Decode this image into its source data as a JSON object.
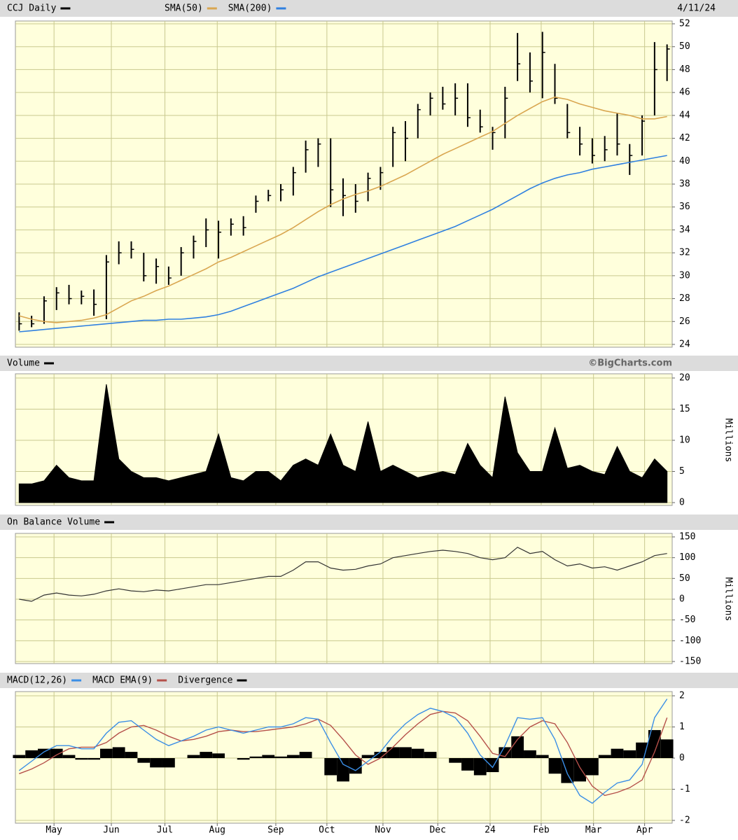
{
  "chart_data": [
    {
      "type": "hlc",
      "title": "CCJ Daily",
      "date": "4/11/24",
      "color": "#000000",
      "grid": true,
      "high": [
        26.8,
        26.5,
        28.2,
        29,
        29.2,
        28.7,
        28.8,
        31.8,
        33,
        33,
        32,
        31.5,
        30.8,
        32.5,
        33.5,
        35,
        34.8,
        35,
        35.2,
        37,
        37.5,
        38,
        39.5,
        41.8,
        42,
        42,
        38.5,
        38,
        39,
        39.5,
        43,
        43.5,
        45,
        46,
        46.5,
        46.8,
        46.8,
        44.5,
        43,
        46.5,
        51.2,
        49.5,
        51.3,
        48.5,
        45,
        43,
        42,
        42.2,
        44.2,
        41.5,
        44,
        50.4,
        50.2
      ],
      "low": [
        25.2,
        25.5,
        25.8,
        27,
        27.5,
        27.5,
        26.5,
        26.2,
        31,
        31.5,
        29.5,
        29.3,
        29.2,
        30,
        31.5,
        32.5,
        31.5,
        33.5,
        33.5,
        35.5,
        36.5,
        36.5,
        37,
        39,
        39.5,
        36,
        35.2,
        35.5,
        36.5,
        37.5,
        39.5,
        40,
        42,
        44,
        44.5,
        44,
        43,
        42.5,
        41,
        42,
        47,
        46,
        45.5,
        45,
        42,
        40.5,
        39.8,
        40,
        40.5,
        38.8,
        40.5,
        44,
        47
      ],
      "close": [
        25.8,
        25.8,
        27.8,
        28.5,
        28,
        28.2,
        27.5,
        31.2,
        32,
        32.3,
        30,
        30.8,
        29.8,
        32,
        33,
        34,
        33.8,
        34.5,
        34.2,
        36.5,
        37,
        37.5,
        39,
        41,
        41.5,
        37.5,
        37,
        36.5,
        38.5,
        39,
        42.5,
        42,
        44.5,
        45.5,
        45,
        45.5,
        43.8,
        43,
        42.5,
        45.5,
        48.5,
        47,
        49.5,
        45.5,
        42.5,
        41.5,
        40.5,
        41,
        41.5,
        40.5,
        43.5,
        48,
        49.8
      ],
      "series": [
        {
          "name": "SMA(50)",
          "color": "#d9a650",
          "values": [
            26.5,
            26.2,
            26.0,
            25.9,
            26.0,
            26.1,
            26.3,
            26.6,
            27.2,
            27.8,
            28.2,
            28.7,
            29.1,
            29.6,
            30.1,
            30.6,
            31.2,
            31.6,
            32.1,
            32.6,
            33.1,
            33.6,
            34.2,
            34.9,
            35.6,
            36.2,
            36.7,
            37.1,
            37.4,
            37.8,
            38.3,
            38.8,
            39.4,
            40.0,
            40.6,
            41.1,
            41.6,
            42.1,
            42.6,
            43.3,
            44.0,
            44.6,
            45.2,
            45.6,
            45.4,
            45.0,
            44.7,
            44.4,
            44.2,
            44.0,
            43.7,
            43.7,
            43.9
          ]
        },
        {
          "name": "SMA(200)",
          "color": "#2f80e0",
          "values": [
            25.1,
            25.2,
            25.3,
            25.4,
            25.5,
            25.6,
            25.7,
            25.8,
            25.9,
            26.0,
            26.1,
            26.1,
            26.2,
            26.2,
            26.3,
            26.4,
            26.6,
            26.9,
            27.3,
            27.7,
            28.1,
            28.5,
            28.9,
            29.4,
            29.9,
            30.3,
            30.7,
            31.1,
            31.5,
            31.9,
            32.3,
            32.7,
            33.1,
            33.5,
            33.9,
            34.3,
            34.8,
            35.3,
            35.8,
            36.4,
            37.0,
            37.6,
            38.1,
            38.5,
            38.8,
            39.0,
            39.3,
            39.5,
            39.7,
            39.9,
            40.1,
            40.3,
            40.5
          ]
        }
      ],
      "ylim": [
        24,
        52
      ],
      "yticks": [
        24,
        26,
        28,
        30,
        32,
        34,
        36,
        38,
        40,
        42,
        44,
        46,
        48,
        50,
        52
      ]
    },
    {
      "type": "area",
      "title": "Volume",
      "credit": "©BigCharts.com",
      "y_label": "Millions",
      "color": "#000000",
      "grid": true,
      "values": [
        3,
        3,
        3.5,
        6,
        4,
        3.5,
        3.5,
        19,
        7,
        5,
        4,
        4,
        3.5,
        4,
        4.5,
        5,
        11,
        4,
        3.5,
        5,
        5,
        3.5,
        6,
        7,
        6,
        11,
        6,
        5,
        13,
        5,
        6,
        5,
        4,
        4.5,
        5,
        4.5,
        9.5,
        6,
        4,
        17,
        8,
        5,
        5,
        12,
        5.5,
        6,
        5,
        4.5,
        9,
        5,
        4,
        7,
        5
      ],
      "ylim": [
        0,
        20
      ],
      "yticks": [
        0,
        5,
        10,
        15,
        20
      ]
    },
    {
      "type": "line",
      "title": "On Balance Volume",
      "y_label": "Millions",
      "color": "#333333",
      "grid": true,
      "values": [
        0,
        -5,
        10,
        15,
        10,
        8,
        12,
        20,
        25,
        20,
        18,
        22,
        20,
        25,
        30,
        35,
        35,
        40,
        45,
        50,
        55,
        55,
        70,
        90,
        90,
        75,
        70,
        72,
        80,
        85,
        100,
        105,
        110,
        115,
        118,
        115,
        110,
        100,
        95,
        100,
        125,
        110,
        115,
        95,
        80,
        85,
        75,
        78,
        70,
        80,
        90,
        105,
        110
      ],
      "ylim": [
        -150,
        150
      ],
      "yticks": [
        -150,
        -100,
        -50,
        0,
        50,
        100,
        150
      ]
    },
    {
      "type": "macd",
      "grid": true,
      "series": [
        {
          "name": "MACD(12,26)",
          "color": "#3a8ee6",
          "values": [
            -0.4,
            -0.1,
            0.2,
            0.4,
            0.4,
            0.3,
            0.3,
            0.8,
            1.15,
            1.2,
            0.9,
            0.6,
            0.4,
            0.55,
            0.7,
            0.9,
            1.0,
            0.9,
            0.8,
            0.9,
            1.0,
            1.0,
            1.1,
            1.3,
            1.25,
            0.5,
            -0.2,
            -0.4,
            -0.1,
            0.2,
            0.7,
            1.1,
            1.4,
            1.6,
            1.5,
            1.3,
            0.8,
            0.1,
            -0.3,
            0.4,
            1.3,
            1.25,
            1.3,
            0.6,
            -0.5,
            -1.2,
            -1.45,
            -1.1,
            -0.8,
            -0.7,
            -0.2,
            1.3,
            1.9
          ]
        },
        {
          "name": "MACD EMA(9)",
          "color": "#b5504a",
          "values": [
            -0.5,
            -0.35,
            -0.15,
            0.1,
            0.3,
            0.35,
            0.35,
            0.5,
            0.8,
            1.0,
            1.05,
            0.9,
            0.7,
            0.55,
            0.6,
            0.7,
            0.85,
            0.9,
            0.85,
            0.85,
            0.9,
            0.95,
            1.0,
            1.1,
            1.25,
            1.05,
            0.6,
            0.1,
            -0.2,
            0.0,
            0.35,
            0.75,
            1.1,
            1.4,
            1.5,
            1.45,
            1.2,
            0.7,
            0.15,
            0.05,
            0.6,
            1.0,
            1.2,
            1.1,
            0.5,
            -0.3,
            -0.9,
            -1.2,
            -1.1,
            -0.95,
            -0.7,
            0.2,
            1.3
          ]
        },
        {
          "name": "Divergence",
          "color": "#000000",
          "values": [
            0.1,
            0.25,
            0.3,
            0.3,
            0.1,
            -0.05,
            -0.05,
            0.3,
            0.35,
            0.2,
            -0.15,
            -0.3,
            -0.3,
            0.0,
            0.1,
            0.2,
            0.15,
            0,
            -0.05,
            0.05,
            0.1,
            0.05,
            0.1,
            0.2,
            0,
            -0.55,
            -0.75,
            -0.5,
            0.1,
            0.2,
            0.35,
            0.35,
            0.3,
            0.2,
            0,
            -0.15,
            -0.4,
            -0.55,
            -0.45,
            0.35,
            0.7,
            0.25,
            0.1,
            -0.5,
            -0.8,
            -0.75,
            -0.55,
            0.1,
            0.3,
            0.25,
            0.5,
            0.9,
            0.6
          ]
        }
      ],
      "ylim": [
        -2,
        2
      ],
      "yticks": [
        -2,
        -1,
        0,
        1,
        2
      ],
      "xlim": [
        -0.3,
        52.3
      ],
      "xticks": [
        {
          "value": 2.8,
          "label": "May"
        },
        {
          "value": 7.4,
          "label": "Jun"
        },
        {
          "value": 11.7,
          "label": "Jul"
        },
        {
          "value": 15.9,
          "label": "Aug"
        },
        {
          "value": 20.6,
          "label": "Sep"
        },
        {
          "value": 24.7,
          "label": "Oct"
        },
        {
          "value": 29.2,
          "label": "Nov"
        },
        {
          "value": 33.6,
          "label": "Dec"
        },
        {
          "value": 37.8,
          "label": "24"
        },
        {
          "value": 41.9,
          "label": "Feb"
        },
        {
          "value": 46.1,
          "label": "Mar"
        },
        {
          "value": 50.2,
          "label": "Apr"
        }
      ]
    }
  ]
}
